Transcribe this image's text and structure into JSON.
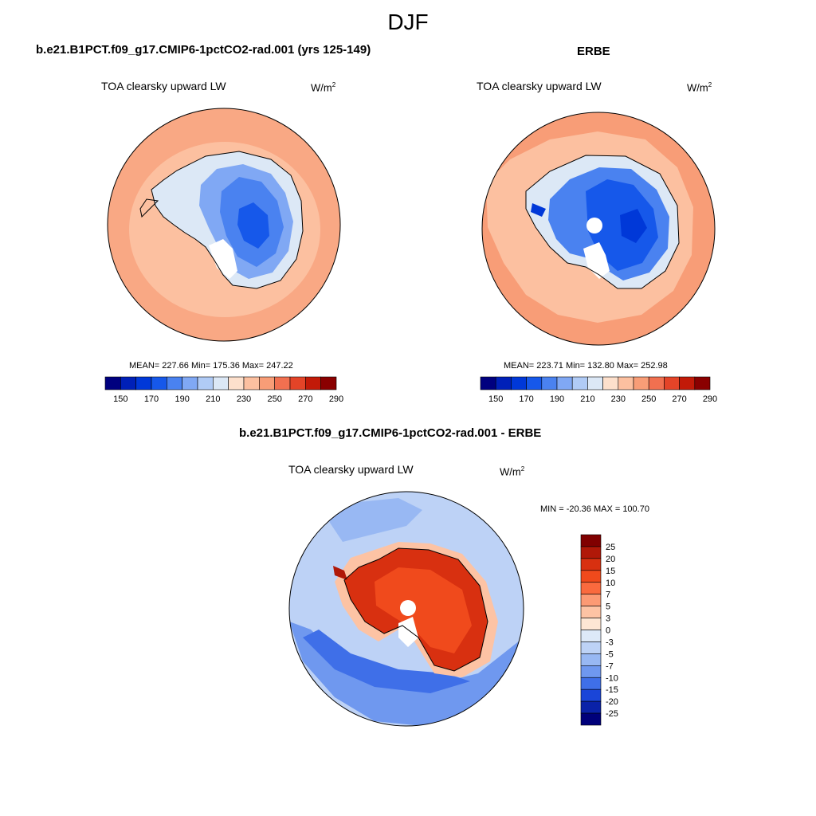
{
  "figure": {
    "title": "DJF",
    "panels": {
      "model": {
        "title": "b.e21.B1PCT.f09_g17.CMIP6-1pctCO2-rad.001 (yrs 125-149)",
        "variable": "TOA clearsky upward LW",
        "units_base": "W/m",
        "units_exp": "2",
        "stats": "MEAN= 227.66  Min= 175.36  Max= 247.22"
      },
      "obs": {
        "title": "ERBE",
        "variable": "TOA clearsky upward LW",
        "units_base": "W/m",
        "units_exp": "2",
        "stats": "MEAN= 223.71  Min= 132.80  Max= 252.98"
      },
      "diff": {
        "title": "b.e21.B1PCT.f09_g17.CMIP6-1pctCO2-rad.001 - ERBE",
        "variable": "TOA clearsky upward LW",
        "units_base": "W/m",
        "units_exp": "2",
        "stats": "MIN = -20.36 MAX = 100.70"
      }
    }
  },
  "chart_data": [
    {
      "type": "heatmap",
      "projection": "south-polar-stereographic",
      "title": "b.e21.B1PCT.f09_g17.CMIP6-1pctCO2-rad.001 (yrs 125-149)",
      "variable": "TOA clearsky upward LW",
      "units": "W/m2",
      "mean": 227.66,
      "min": 175.36,
      "max": 247.22,
      "colorbar_levels": [
        150,
        160,
        170,
        180,
        190,
        200,
        210,
        220,
        230,
        240,
        250,
        260,
        270,
        280,
        290
      ],
      "colorbar_tick_labels": [
        "150",
        "170",
        "190",
        "210",
        "230",
        "250",
        "270",
        "290"
      ],
      "colors": [
        "#00007f",
        "#0020b8",
        "#0038d8",
        "#1658ea",
        "#4a82f0",
        "#80a8f4",
        "#b0cbf6",
        "#dce8f6",
        "#fde0cc",
        "#fcc0a0",
        "#f89d77",
        "#f17050",
        "#e44428",
        "#c21a08",
        "#8a0000"
      ]
    },
    {
      "type": "heatmap",
      "projection": "south-polar-stereographic",
      "title": "ERBE",
      "variable": "TOA clearsky upward LW",
      "units": "W/m2",
      "mean": 223.71,
      "min": 132.8,
      "max": 252.98,
      "colorbar_levels": [
        150,
        160,
        170,
        180,
        190,
        200,
        210,
        220,
        230,
        240,
        250,
        260,
        270,
        280,
        290
      ],
      "colorbar_tick_labels": [
        "150",
        "170",
        "190",
        "210",
        "230",
        "250",
        "270",
        "290"
      ],
      "colors": [
        "#00007f",
        "#0020b8",
        "#0038d8",
        "#1658ea",
        "#4a82f0",
        "#80a8f4",
        "#b0cbf6",
        "#dce8f6",
        "#fde0cc",
        "#fcc0a0",
        "#f89d77",
        "#f17050",
        "#e44428",
        "#c21a08",
        "#8a0000"
      ]
    },
    {
      "type": "heatmap",
      "projection": "south-polar-stereographic",
      "title": "b.e21.B1PCT.f09_g17.CMIP6-1pctCO2-rad.001 - ERBE",
      "variable": "TOA clearsky upward LW",
      "units": "W/m2",
      "min": -20.36,
      "max": 100.7,
      "colorbar_tick_labels": [
        "25",
        "20",
        "15",
        "10",
        "7",
        "5",
        "3",
        "0",
        "-3",
        "-5",
        "-7",
        "-10",
        "-15",
        "-20",
        "-25"
      ],
      "colors": [
        "#800000",
        "#b01808",
        "#d83010",
        "#f04a1c",
        "#fa6a3e",
        "#fc9a74",
        "#fdc3a4",
        "#fde6d4",
        "#dde9f8",
        "#bdd2f6",
        "#98b8f3",
        "#6f98ef",
        "#3f6fe8",
        "#1a45d8",
        "#0a22a8",
        "#00007a"
      ]
    }
  ]
}
